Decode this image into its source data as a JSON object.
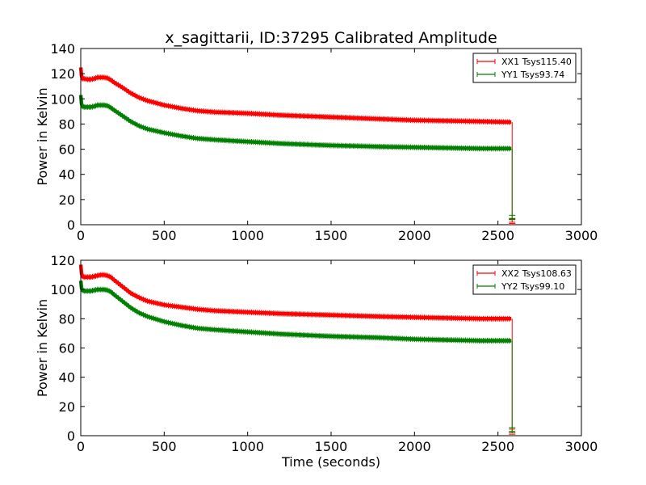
{
  "chart_data": [
    {
      "type": "line",
      "title": "x_sagittarii, ID:37295 Calibrated Amplitude",
      "xlabel": "",
      "ylabel": "Power in Kelvin",
      "xlim": [
        0,
        3000
      ],
      "ylim": [
        0,
        140
      ],
      "xticks": [
        "0",
        "500",
        "1000",
        "1500",
        "2000",
        "2500",
        "3000"
      ],
      "yticks": [
        "0",
        "20",
        "40",
        "60",
        "80",
        "100",
        "120",
        "140"
      ],
      "legend_position": "top-right",
      "grid": false,
      "series": [
        {
          "name": "XX1 Tsys115.40",
          "color": "#ff0000",
          "x": [
            0,
            5,
            10,
            20,
            40,
            60,
            80,
            100,
            120,
            140,
            160,
            180,
            200,
            250,
            300,
            350,
            400,
            500,
            600,
            700,
            800,
            1000,
            1200,
            1500,
            1800,
            2000,
            2200,
            2400,
            2580
          ],
          "y": [
            125,
            118,
            116,
            116,
            115.5,
            115.5,
            116,
            117,
            117,
            117,
            116.5,
            115,
            113,
            109,
            104.5,
            101,
            98.5,
            95,
            92.5,
            90.5,
            89.5,
            88.5,
            87,
            85.5,
            84,
            83,
            82.5,
            82,
            81.5
          ],
          "drop": {
            "x": 2585,
            "y_from": 81.5,
            "y_to": 2
          }
        },
        {
          "name": "YY1 Tsys93.74",
          "color": "#008000",
          "x": [
            0,
            5,
            10,
            20,
            40,
            60,
            80,
            100,
            120,
            140,
            160,
            180,
            200,
            250,
            300,
            350,
            400,
            500,
            600,
            700,
            800,
            1000,
            1200,
            1500,
            1800,
            2000,
            2200,
            2400,
            2580
          ],
          "y": [
            103,
            96,
            94,
            93.5,
            93.5,
            93.5,
            94,
            95,
            95,
            95,
            94.5,
            93,
            91,
            86.5,
            82,
            78.5,
            76,
            73,
            70.5,
            68.5,
            67.5,
            66,
            64.5,
            63,
            62,
            61.5,
            61,
            60.5,
            60.5
          ],
          "drop": {
            "x": 2585,
            "y_from": 60.5,
            "y_to": 5
          }
        }
      ]
    },
    {
      "type": "line",
      "title": "",
      "xlabel": "Time (seconds)",
      "ylabel": "Power in Kelvin",
      "xlim": [
        0,
        3000
      ],
      "ylim": [
        0,
        120
      ],
      "xticks": [
        "0",
        "500",
        "1000",
        "1500",
        "2000",
        "2500",
        "3000"
      ],
      "yticks": [
        "0",
        "20",
        "40",
        "60",
        "80",
        "100",
        "120"
      ],
      "legend_position": "top-right",
      "grid": false,
      "series": [
        {
          "name": "XX2 Tsys108.63",
          "color": "#ff0000",
          "x": [
            0,
            5,
            10,
            20,
            40,
            60,
            80,
            100,
            120,
            140,
            160,
            180,
            200,
            250,
            300,
            350,
            400,
            500,
            600,
            700,
            800,
            1000,
            1200,
            1500,
            1800,
            2000,
            2200,
            2400,
            2580
          ],
          "y": [
            117,
            111,
            109,
            108.5,
            108.5,
            108.5,
            109,
            109.5,
            110,
            110,
            109.5,
            108.5,
            106.5,
            102,
            97.5,
            94.5,
            92,
            89.5,
            88,
            86.5,
            85.5,
            84.5,
            83.5,
            82.5,
            81.5,
            81,
            80.5,
            80,
            80
          ],
          "drop": {
            "x": 2585,
            "y_from": 80,
            "y_to": 2
          }
        },
        {
          "name": "YY2 Tsys99.10",
          "color": "#008000",
          "x": [
            0,
            5,
            10,
            20,
            40,
            60,
            80,
            100,
            120,
            140,
            160,
            180,
            200,
            250,
            300,
            350,
            400,
            500,
            600,
            700,
            800,
            1000,
            1200,
            1500,
            1800,
            2000,
            2200,
            2400,
            2580
          ],
          "y": [
            106,
            101,
            99.5,
            99,
            99,
            99,
            99.5,
            100,
            100,
            100,
            99.5,
            98.5,
            96.5,
            92,
            87.5,
            84,
            81.5,
            78,
            75.5,
            73.5,
            72.5,
            71,
            69.5,
            68,
            67,
            66,
            65.5,
            65,
            65
          ],
          "drop": {
            "x": 2585,
            "y_from": 65,
            "y_to": 3
          }
        }
      ]
    }
  ]
}
